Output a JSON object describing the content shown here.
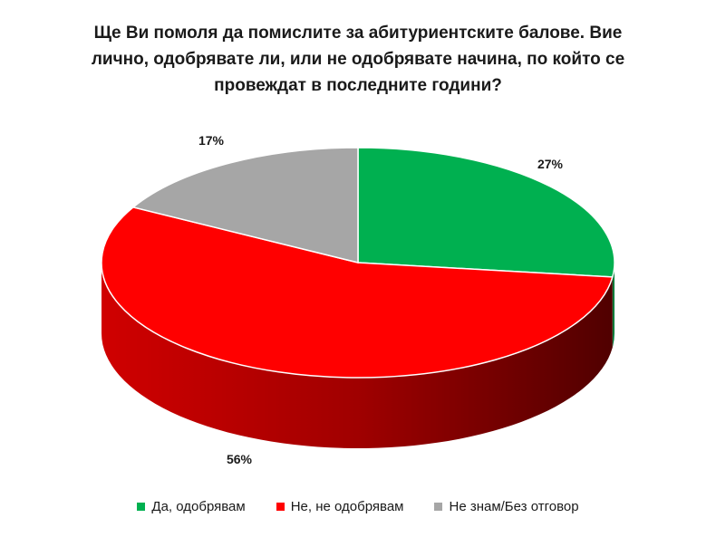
{
  "chart_data": {
    "type": "pie",
    "title": "Ще Ви помоля да помислите за абитуриентските балове. Вие лично, одобрявате ли, или не одобрявате начина, по който се провеждат в последните години?",
    "categories": [
      "Да, одобрявам",
      "Не, не одобрявам",
      "Не знам/Без отговор"
    ],
    "values": [
      27,
      56,
      17
    ],
    "labels": [
      "27%",
      "56%",
      "17%"
    ],
    "colors": [
      "#00b050",
      "#ff0000",
      "#a6a6a6"
    ],
    "legend_position": "bottom",
    "style": "3d"
  }
}
